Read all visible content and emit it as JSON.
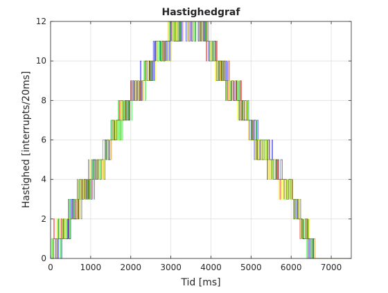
{
  "chart_data": {
    "type": "line",
    "title": "Hastighedgraf",
    "xlabel": "Tid [ms]",
    "ylabel": "Hastighed [interrupts/20ms]",
    "xlim": [
      0,
      7500
    ],
    "ylim": [
      0,
      12
    ],
    "xticks": [
      0,
      1000,
      2000,
      3000,
      4000,
      5000,
      6000,
      7000
    ],
    "yticks": [
      0,
      2,
      4,
      6,
      8,
      10,
      12
    ],
    "grid": true,
    "legend": "none",
    "series_colors": [
      "#ff0000",
      "#0000ff",
      "#00ff00",
      "#ffff00",
      "#000000"
    ],
    "envelope": {
      "x": [
        0,
        80,
        200,
        350,
        500,
        600,
        700,
        850,
        1000,
        1150,
        1300,
        1450,
        1600,
        1700,
        1850,
        2000,
        2150,
        2300,
        2450,
        2600,
        2800,
        3000,
        3100,
        3250,
        3400,
        3550,
        3700,
        3800,
        3950,
        4100,
        4250,
        4400,
        4550,
        4700,
        4850,
        5000,
        5150,
        5300,
        5450,
        5600,
        5750,
        5900,
        6050,
        6200,
        6300,
        6400,
        6500,
        6600,
        7000,
        7500
      ],
      "y": [
        0,
        0.8,
        1,
        1.5,
        2,
        2.5,
        3,
        3.5,
        4,
        4.5,
        5,
        5.8,
        6.5,
        7,
        7.5,
        8,
        8.5,
        9,
        9.5,
        10,
        10.5,
        11,
        11.5,
        12,
        12,
        12,
        12,
        11.5,
        11,
        10,
        9.5,
        9,
        8.5,
        8,
        7.5,
        6.5,
        6,
        5.5,
        5,
        4.5,
        4,
        3.5,
        3,
        2,
        1.5,
        1,
        0.5,
        0,
        0,
        0
      ]
    }
  }
}
